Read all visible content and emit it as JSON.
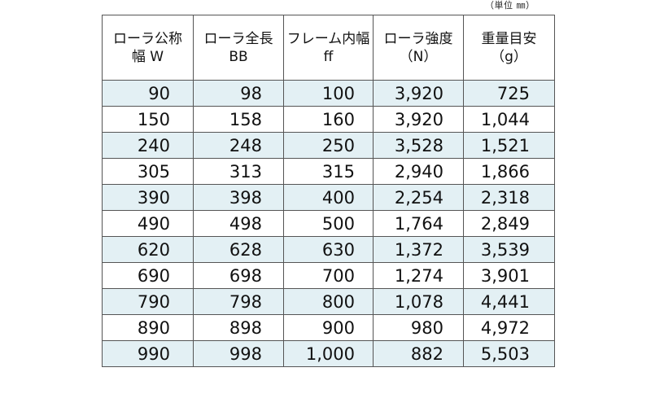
{
  "unit_note": "（単位 ㎜）",
  "headers": [
    {
      "line1": "ローラ公称",
      "line2": "幅 W"
    },
    {
      "line1": "ローラ全長",
      "line2": "BB"
    },
    {
      "line1": "フレーム内幅",
      "line2": "ff"
    },
    {
      "line1": "ローラ強度",
      "line2": "（N）"
    },
    {
      "line1": "重量目安",
      "line2": "（g）"
    }
  ],
  "rows": [
    [
      "90",
      "98",
      "100",
      "3,920",
      "725"
    ],
    [
      "150",
      "158",
      "160",
      "3,920",
      "1,044"
    ],
    [
      "240",
      "248",
      "250",
      "3,528",
      "1,521"
    ],
    [
      "305",
      "313",
      "315",
      "2,940",
      "1,866"
    ],
    [
      "390",
      "398",
      "400",
      "2,254",
      "2,318"
    ],
    [
      "490",
      "498",
      "500",
      "1,764",
      "2,849"
    ],
    [
      "620",
      "628",
      "630",
      "1,372",
      "3,539"
    ],
    [
      "690",
      "698",
      "700",
      "1,274",
      "3,901"
    ],
    [
      "790",
      "798",
      "800",
      "1,078",
      "4,441"
    ],
    [
      "890",
      "898",
      "900",
      "980",
      "4,972"
    ],
    [
      "990",
      "998",
      "1,000",
      "882",
      "5,503"
    ]
  ],
  "colors": {
    "stripe": "#e3f0f4",
    "border": "#555555"
  }
}
